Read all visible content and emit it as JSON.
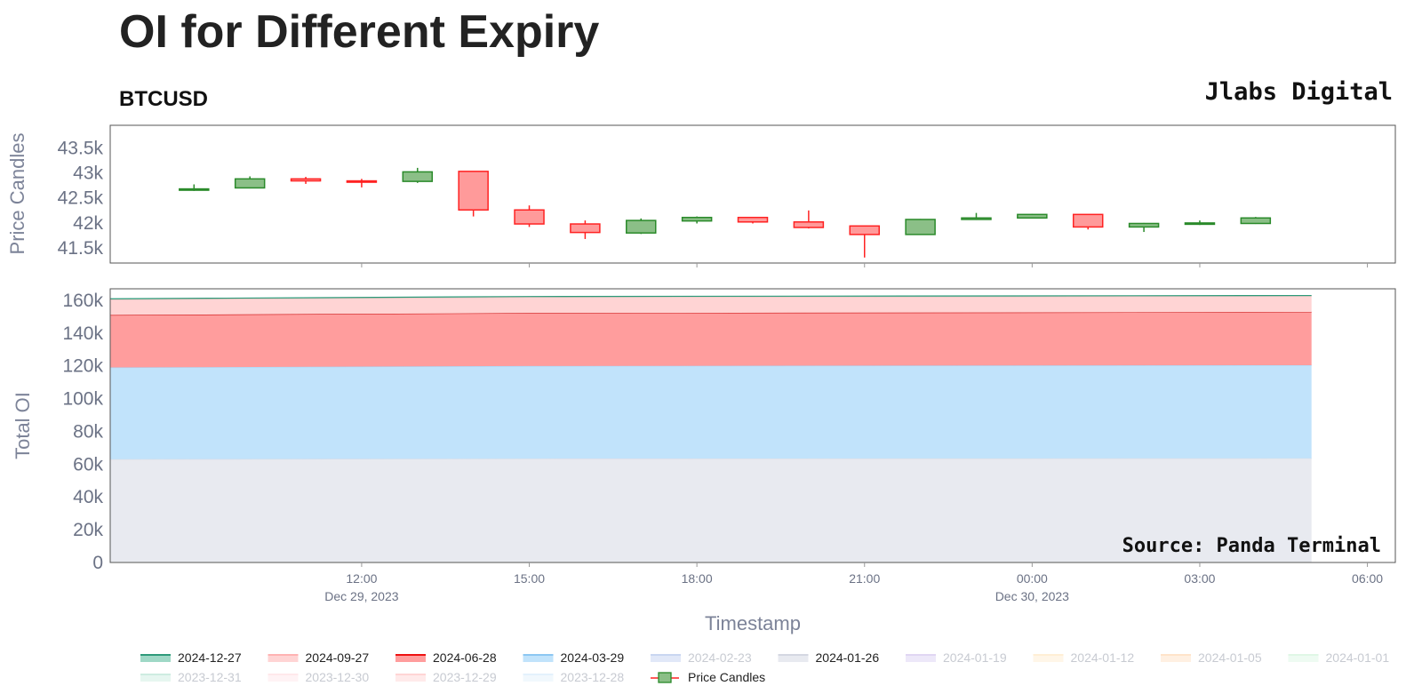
{
  "title": "OI for Different Expiry",
  "subtitle": "BTCUSD",
  "brand": "Jlabs Digital",
  "source_note": "Source: Panda Terminal",
  "colors": {
    "up": "#2a8a2a",
    "up_fill": "#8bbf87",
    "down": "#ff2222",
    "down_fill": "#ff9a9a",
    "axis_text": "#6b7285"
  },
  "chart_data": [
    {
      "type": "candlestick",
      "name": "Price Candles",
      "ylabel": "Price Candles",
      "ylim": [
        41200,
        43950
      ],
      "yticks": [
        41500,
        42000,
        42500,
        43000,
        43500
      ],
      "ytick_labels": [
        "41.5k",
        "42k",
        "42.5k",
        "43k",
        "43.5k"
      ],
      "grid": false,
      "candles": [
        {
          "t": "2023-12-29 09:00",
          "open": 42660,
          "high": 42770,
          "low": 42640,
          "close": 42680
        },
        {
          "t": "2023-12-29 10:00",
          "open": 42700,
          "high": 42930,
          "low": 42690,
          "close": 42880
        },
        {
          "t": "2023-12-29 11:00",
          "open": 42880,
          "high": 42920,
          "low": 42780,
          "close": 42840
        },
        {
          "t": "2023-12-29 12:00",
          "open": 42840,
          "high": 42880,
          "low": 42710,
          "close": 42830
        },
        {
          "t": "2023-12-29 13:00",
          "open": 42830,
          "high": 43100,
          "low": 42800,
          "close": 43020
        },
        {
          "t": "2023-12-29 14:00",
          "open": 43030,
          "high": 43030,
          "low": 42130,
          "close": 42260
        },
        {
          "t": "2023-12-29 15:00",
          "open": 42260,
          "high": 42350,
          "low": 41920,
          "close": 41980
        },
        {
          "t": "2023-12-29 16:00",
          "open": 41980,
          "high": 42050,
          "low": 41680,
          "close": 41810
        },
        {
          "t": "2023-12-29 17:00",
          "open": 41800,
          "high": 42090,
          "low": 41780,
          "close": 42050
        },
        {
          "t": "2023-12-29 18:00",
          "open": 42040,
          "high": 42130,
          "low": 41990,
          "close": 42110
        },
        {
          "t": "2023-12-29 19:00",
          "open": 42110,
          "high": 42110,
          "low": 41990,
          "close": 42020
        },
        {
          "t": "2023-12-29 20:00",
          "open": 42020,
          "high": 42250,
          "low": 41890,
          "close": 41910
        },
        {
          "t": "2023-12-29 21:00",
          "open": 41940,
          "high": 41940,
          "low": 41310,
          "close": 41770
        },
        {
          "t": "2023-12-29 22:00",
          "open": 41770,
          "high": 42080,
          "low": 41760,
          "close": 42070
        },
        {
          "t": "2023-12-29 23:00",
          "open": 42070,
          "high": 42200,
          "low": 42060,
          "close": 42100
        },
        {
          "t": "2023-12-30 00:00",
          "open": 42100,
          "high": 42180,
          "low": 42090,
          "close": 42170
        },
        {
          "t": "2023-12-30 01:00",
          "open": 42170,
          "high": 42170,
          "low": 41870,
          "close": 41920
        },
        {
          "t": "2023-12-30 02:00",
          "open": 41920,
          "high": 42000,
          "low": 41820,
          "close": 41990
        },
        {
          "t": "2023-12-30 03:00",
          "open": 41980,
          "high": 42050,
          "low": 41960,
          "close": 42000
        },
        {
          "t": "2023-12-30 04:00",
          "open": 41990,
          "high": 42120,
          "low": 41980,
          "close": 42100
        }
      ]
    },
    {
      "type": "area",
      "stacked": true,
      "ylabel": "Total OI",
      "xlabel": "Timestamp",
      "ylim": [
        0,
        167000
      ],
      "yticks": [
        0,
        20000,
        40000,
        60000,
        80000,
        100000,
        120000,
        140000,
        160000
      ],
      "ytick_labels": [
        "0",
        "20k",
        "40k",
        "60k",
        "80k",
        "100k",
        "120k",
        "140k",
        "160k"
      ],
      "xlim": [
        "2023-12-29 07:30",
        "2023-12-30 06:30"
      ],
      "xticks": [
        {
          "t": "2023-12-29 12:00",
          "label": "12:00",
          "sublabel": "Dec 29, 2023"
        },
        {
          "t": "2023-12-29 15:00",
          "label": "15:00",
          "sublabel": ""
        },
        {
          "t": "2023-12-29 18:00",
          "label": "18:00",
          "sublabel": ""
        },
        {
          "t": "2023-12-29 21:00",
          "label": "21:00",
          "sublabel": ""
        },
        {
          "t": "2023-12-30 00:00",
          "label": "00:00",
          "sublabel": "Dec 30, 2023"
        },
        {
          "t": "2023-12-30 03:00",
          "label": "03:00",
          "sublabel": ""
        },
        {
          "t": "2023-12-30 06:00",
          "label": "06:00",
          "sublabel": ""
        }
      ],
      "x": [
        "2023-12-29 07:30",
        "2023-12-29 15:00",
        "2023-12-30 05:00"
      ],
      "series": [
        {
          "name": "2024-01-26",
          "color": "#e8eaf0",
          "line": "#d9dce6",
          "values": [
            63000,
            63400,
            63600
          ]
        },
        {
          "name": "2024-03-29",
          "color": "#c1e3fb",
          "line": "#a8d3f5",
          "values": [
            56000,
            56500,
            56800
          ]
        },
        {
          "name": "2024-06-28",
          "color": "#ff9d9d",
          "line": "#cc1111",
          "values": [
            32000,
            32300,
            32400
          ]
        },
        {
          "name": "2024-09-27",
          "color": "#ffd4d4",
          "line": "#ffc0c0",
          "values": [
            9500,
            9700,
            9700
          ]
        },
        {
          "name": "2024-12-27",
          "color": "#9fd8c6",
          "line": "#2e9a7a",
          "values": [
            400,
            400,
            400
          ]
        }
      ]
    }
  ],
  "legend": [
    {
      "label": "2024-12-27",
      "color": "#2e9a7a",
      "fill": "#9fd8c6",
      "active": true
    },
    {
      "label": "2024-09-27",
      "color": "#ffb3b3",
      "fill": "#ffd4d4",
      "active": true
    },
    {
      "label": "2024-06-28",
      "color": "#ee1111",
      "fill": "#ff9d9d",
      "active": true
    },
    {
      "label": "2024-03-29",
      "color": "#8cc7f2",
      "fill": "#c1e3fb",
      "active": true
    },
    {
      "label": "2024-02-23",
      "color": "#9db5e6",
      "fill": "#c9d7f3",
      "active": false
    },
    {
      "label": "2024-01-26",
      "color": "#d4d7e2",
      "fill": "#e8eaf0",
      "active": true
    },
    {
      "label": "2024-01-19",
      "color": "#c7b6ea",
      "fill": "#e0d6f5",
      "active": false
    },
    {
      "label": "2024-01-12",
      "color": "#ffe2b3",
      "fill": "#fff0d6",
      "active": false
    },
    {
      "label": "2024-01-05",
      "color": "#ffcf9f",
      "fill": "#ffe5cc",
      "active": false
    },
    {
      "label": "2024-01-01",
      "color": "#c6f1d2",
      "fill": "#e1f8e8",
      "active": false
    },
    {
      "label": "2023-12-31",
      "color": "#a7ddc9",
      "fill": "#d3efe4",
      "active": false
    },
    {
      "label": "2023-12-30",
      "color": "#ffd6dc",
      "fill": "#ffeaee",
      "active": false
    },
    {
      "label": "2023-12-29",
      "color": "#ffb3b3",
      "fill": "#ffd9d9",
      "active": false
    },
    {
      "label": "2023-12-28",
      "color": "#cfe6fb",
      "fill": "#e7f3fd",
      "active": false
    },
    {
      "label": "Price Candles",
      "color": "#ff2222",
      "fill": "#8bbf87",
      "active": true,
      "candle": true
    }
  ]
}
